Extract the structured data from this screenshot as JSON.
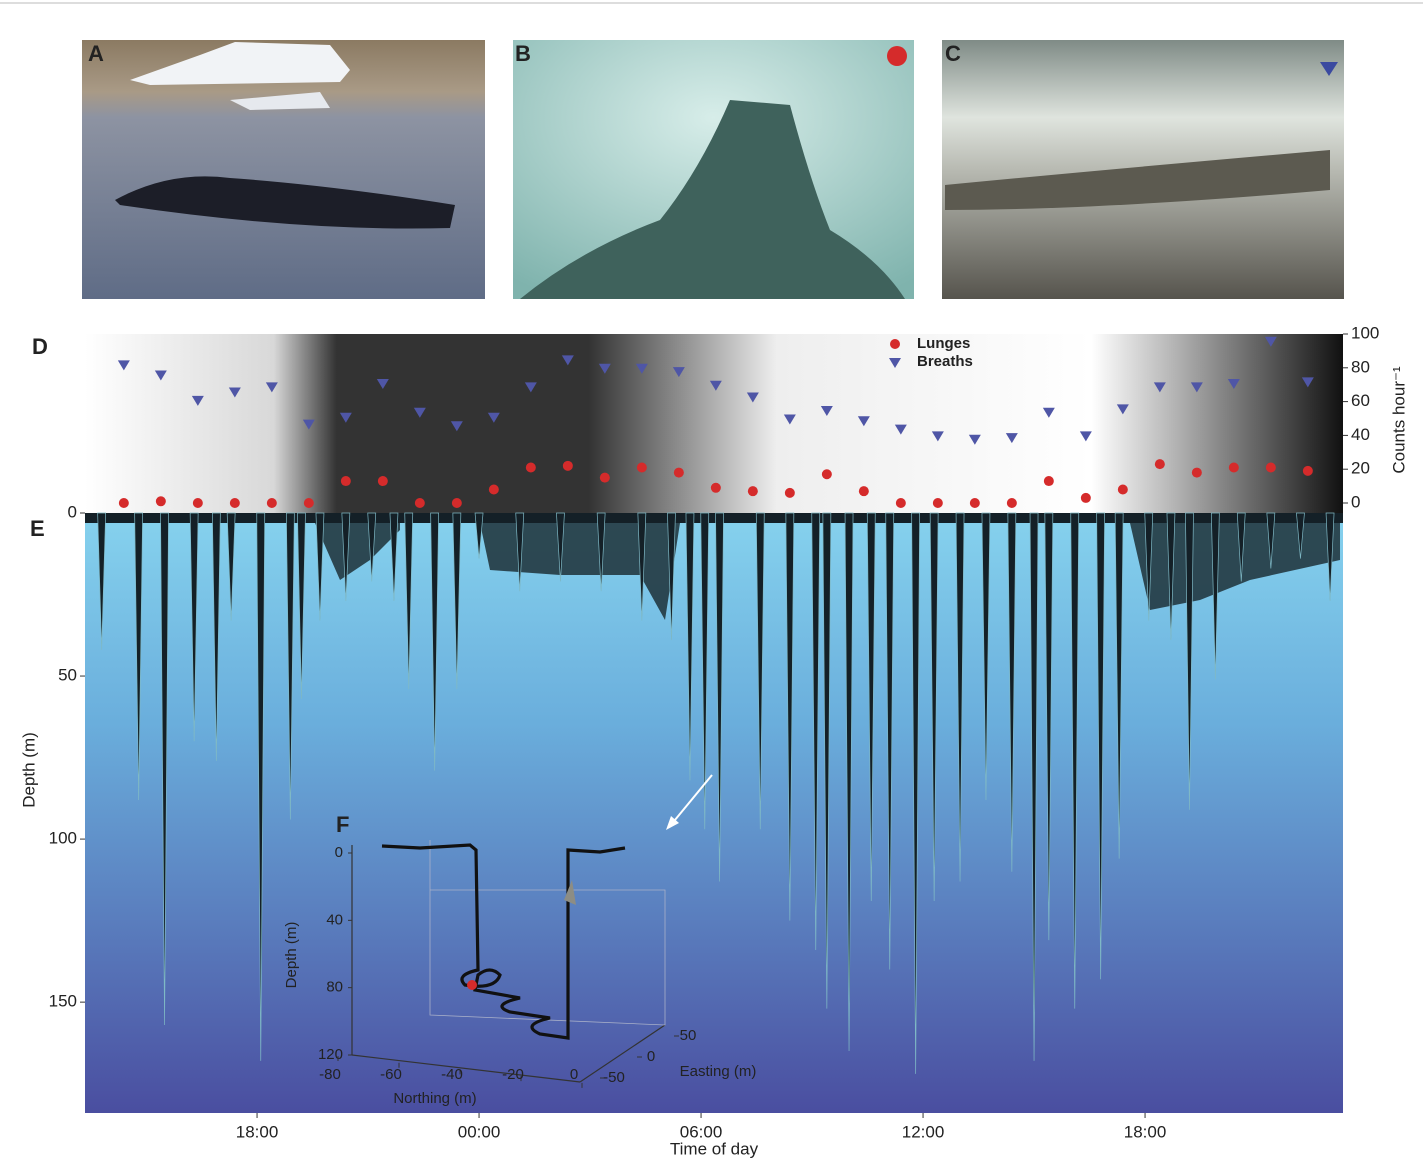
{
  "photo_labels": [
    "A",
    "B",
    "C"
  ],
  "chart_data": [
    {
      "type": "scatter",
      "label": "D",
      "y2_label": "Counts hour⁻¹",
      "legend": "top",
      "xlim": [
        13.35,
        47.35
      ],
      "x": [
        14.4,
        15.4,
        16.4,
        17.4,
        18.4,
        19.4,
        20.4,
        21.4,
        22.4,
        23.4,
        24.4,
        25.4,
        26.4,
        27.4,
        28.4,
        29.4,
        30.4,
        31.4,
        32.4,
        33.4,
        34.4,
        35.4,
        36.4,
        37.4,
        38.4,
        39.4,
        40.4,
        41.4,
        42.4,
        43.4,
        44.4,
        45.4,
        46.4
      ],
      "ylim": [
        0,
        100
      ],
      "yticks": [
        0,
        20,
        40,
        60,
        80,
        100
      ],
      "series": [
        {
          "name": "Lunges",
          "color": "#d52b2b",
          "marker": "circle",
          "values": [
            0,
            1,
            0,
            0,
            0,
            0,
            13,
            13,
            0,
            0,
            8,
            21,
            22,
            15,
            21,
            18,
            9,
            7,
            6,
            17,
            7,
            0,
            0,
            0,
            0,
            13,
            3,
            8,
            23,
            18,
            21,
            21,
            19
          ]
        },
        {
          "name": "Breaths",
          "color": "#4f56a6",
          "marker": "triangle",
          "values": [
            82,
            76,
            61,
            66,
            69,
            47,
            51,
            71,
            54,
            46,
            51,
            69,
            85,
            80,
            80,
            78,
            70,
            63,
            50,
            55,
            49,
            44,
            40,
            38,
            39,
            54,
            40,
            56,
            69,
            69,
            71,
            96,
            72
          ]
        }
      ]
    },
    {
      "type": "dive",
      "label": "E",
      "x_label": "Time of day",
      "y_label": "Depth (m)",
      "color": "#142027",
      "xlim": [
        13.35,
        47.35
      ],
      "xticks": [
        {
          "value": 18,
          "label": "18:00"
        },
        {
          "value": 24,
          "label": "00:00"
        },
        {
          "value": 30,
          "label": "06:00"
        },
        {
          "value": 36,
          "label": "12:00"
        },
        {
          "value": 42,
          "label": "18:00"
        }
      ],
      "ylim": [
        0,
        184
      ],
      "yticks": [
        0,
        50,
        100,
        150
      ],
      "x": [
        13.8,
        14.8,
        15.5,
        16.3,
        16.9,
        17.3,
        18.1,
        18.9,
        19.2,
        19.7,
        20.4,
        21.1,
        21.7,
        22.1,
        22.8,
        23.4,
        24.0,
        25.1,
        26.2,
        27.3,
        28.4,
        29.2,
        29.7,
        30.1,
        30.5,
        31.6,
        32.4,
        33.1,
        33.4,
        34.0,
        34.6,
        35.1,
        35.8,
        36.3,
        37.0,
        37.7,
        38.4,
        39.0,
        39.4,
        40.1,
        40.8,
        41.3,
        42.1,
        42.7,
        43.2,
        43.9,
        44.6,
        45.4,
        46.2,
        47.0
      ],
      "values": [
        42,
        88,
        157,
        70,
        76,
        33,
        168,
        94,
        57,
        33,
        27,
        21,
        27,
        54,
        79,
        54,
        14,
        24,
        21,
        24,
        33,
        39,
        82,
        97,
        113,
        97,
        125,
        134,
        152,
        165,
        119,
        140,
        172,
        119,
        113,
        88,
        110,
        168,
        131,
        152,
        143,
        106,
        33,
        39,
        91,
        51,
        21,
        17,
        14,
        27
      ]
    },
    {
      "type": "track3d",
      "label": "F",
      "x_label": "Northing (m)",
      "y_label": "Depth (m)",
      "z_label": "Easting (m)",
      "xlim": [
        -80,
        0
      ],
      "xticks": [
        -80,
        -60,
        -40,
        -20,
        0
      ],
      "ylim": [
        0,
        120
      ],
      "yticks": [
        0,
        40,
        80,
        120
      ],
      "zlim": [
        -50,
        50
      ],
      "zticks": [
        50,
        0,
        -50
      ]
    }
  ]
}
